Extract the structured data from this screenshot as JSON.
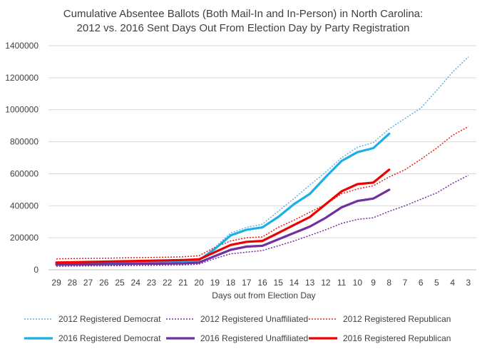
{
  "chart_data": {
    "type": "line",
    "title": [
      "Cumulative Absentee Ballots (Both Mail-In and In-Person) in North Carolina:",
      "2012 vs. 2016 Sent Days Out From Election Day by Party Registration"
    ],
    "xlabel": "Days out from Election Day",
    "ylabel": "",
    "categories": [
      "29",
      "28",
      "27",
      "26",
      "25",
      "24",
      "23",
      "22",
      "21",
      "20",
      "19",
      "18",
      "17",
      "16",
      "15",
      "14",
      "13",
      "12",
      "11",
      "10",
      "9",
      "8",
      "7",
      "6",
      "5",
      "4",
      "3"
    ],
    "ylim": [
      0,
      1400000
    ],
    "yticks": [
      "0",
      "200000",
      "400000",
      "600000",
      "800000",
      "1000000",
      "1200000",
      "1400000"
    ],
    "grid": true,
    "legend_position": "bottom",
    "series": [
      {
        "name": "2012 Registered Democrat",
        "color": "#5eb0e5",
        "style": "dotted",
        "values": [
          30000,
          32000,
          34000,
          36000,
          37000,
          38000,
          40000,
          42000,
          44000,
          55000,
          140000,
          230000,
          265000,
          285000,
          365000,
          445000,
          530000,
          610000,
          700000,
          765000,
          795000,
          880000,
          945000,
          1010000,
          1120000,
          1235000,
          1330000
        ]
      },
      {
        "name": "2012 Registered Unaffiliated",
        "color": "#7030a0",
        "style": "dotted",
        "values": [
          22000,
          23000,
          24000,
          25000,
          26000,
          27000,
          28000,
          29000,
          30000,
          35000,
          70000,
          100000,
          110000,
          120000,
          150000,
          180000,
          215000,
          250000,
          290000,
          315000,
          325000,
          365000,
          400000,
          440000,
          480000,
          540000,
          590000
        ]
      },
      {
        "name": "2012 Registered Republican",
        "color": "#e0201c",
        "style": "dotted",
        "values": [
          68000,
          70000,
          71000,
          72000,
          74000,
          76000,
          77000,
          79000,
          81000,
          88000,
          140000,
          180000,
          200000,
          205000,
          265000,
          310000,
          360000,
          410000,
          475000,
          505000,
          525000,
          580000,
          625000,
          690000,
          760000,
          840000,
          895000
        ]
      },
      {
        "name": "2016 Registered Democrat",
        "color": "#1cafe6",
        "style": "solid",
        "values": [
          38000,
          40000,
          42000,
          44000,
          46000,
          48000,
          50000,
          52000,
          55000,
          60000,
          130000,
          215000,
          250000,
          265000,
          330000,
          410000,
          475000,
          580000,
          680000,
          735000,
          760000,
          850000,
          null,
          null,
          null,
          null,
          null
        ]
      },
      {
        "name": "2016 Registered Unaffiliated",
        "color": "#7030a0",
        "style": "solid",
        "values": [
          32000,
          33000,
          34000,
          35000,
          36000,
          37000,
          38000,
          39000,
          40000,
          45000,
          85000,
          125000,
          145000,
          150000,
          190000,
          230000,
          270000,
          325000,
          390000,
          430000,
          445000,
          500000,
          null,
          null,
          null,
          null,
          null
        ]
      },
      {
        "name": "2016 Registered Republican",
        "color": "#ee0000",
        "style": "solid",
        "values": [
          45000,
          47000,
          49000,
          51000,
          53000,
          55000,
          57000,
          59000,
          61000,
          65000,
          110000,
          155000,
          175000,
          180000,
          230000,
          280000,
          330000,
          410000,
          490000,
          535000,
          545000,
          625000,
          null,
          null,
          null,
          null,
          null
        ]
      }
    ]
  }
}
